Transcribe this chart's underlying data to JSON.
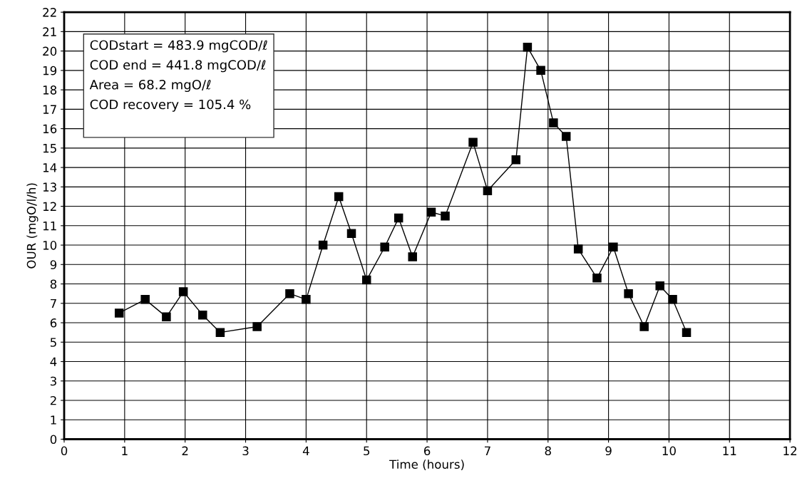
{
  "chart_data": {
    "type": "line",
    "xlabel": "Time (hours)",
    "ylabel": "OUR (mgO/l/h)",
    "series": [
      {
        "color": "#000000",
        "x": [
          0.91,
          1.34,
          1.69,
          1.97,
          2.29,
          2.58,
          3.19,
          3.73,
          4.0,
          4.28,
          4.54,
          4.75,
          5.0,
          5.3,
          5.53,
          5.76,
          6.07,
          6.3,
          6.76,
          7.0,
          7.47,
          7.66,
          7.88,
          8.09,
          8.3,
          8.5,
          8.81,
          9.08,
          9.33,
          9.59,
          9.85,
          10.06,
          10.29
        ],
        "values": [
          6.5,
          7.2,
          6.3,
          7.6,
          6.4,
          5.5,
          5.8,
          7.5,
          7.2,
          10.0,
          12.5,
          10.6,
          8.2,
          9.9,
          11.4,
          9.4,
          11.7,
          11.5,
          15.3,
          12.8,
          14.4,
          20.2,
          19.0,
          16.3,
          15.6,
          9.8,
          8.3,
          9.9,
          7.5,
          5.8,
          7.9,
          7.2,
          5.5
        ]
      }
    ],
    "xlim": [
      0,
      12
    ],
    "xticks": [
      0,
      1,
      2,
      3,
      4,
      5,
      6,
      7,
      8,
      9,
      10,
      11,
      12
    ],
    "ylim": [
      0,
      22
    ],
    "yticks": [
      0,
      1,
      2,
      3,
      4,
      5,
      6,
      7,
      8,
      9,
      10,
      11,
      12,
      13,
      14,
      15,
      16,
      17,
      18,
      19,
      20,
      21,
      22
    ],
    "grid": true,
    "marker": "square",
    "line_style": "solid",
    "annotations": [
      "CODstart = 483.9 mgCOD/ℓ\nCOD end = 441.8 mgCOD/ℓ\nArea = 68.2 mgO/ℓ\nCOD recovery = 105.4 %"
    ]
  }
}
